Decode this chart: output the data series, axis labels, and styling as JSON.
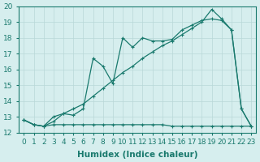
{
  "line1_x": [
    0,
    1,
    2,
    3,
    4,
    5,
    6,
    7,
    8,
    9,
    10,
    11,
    12,
    13,
    14,
    15,
    16,
    17,
    18,
    19,
    20,
    21,
    22,
    23
  ],
  "line1_y": [
    12.8,
    12.5,
    12.4,
    12.5,
    12.5,
    12.5,
    12.5,
    12.5,
    12.5,
    12.5,
    12.5,
    12.5,
    12.5,
    12.5,
    12.5,
    12.4,
    12.4,
    12.4,
    12.4,
    12.4,
    12.4,
    12.4,
    12.4,
    12.4
  ],
  "line2_x": [
    0,
    1,
    2,
    3,
    4,
    5,
    6,
    7,
    8,
    9,
    10,
    11,
    12,
    13,
    14,
    15,
    16,
    17,
    18,
    19,
    20,
    21,
    22,
    23
  ],
  "line2_y": [
    12.8,
    12.5,
    12.4,
    13.0,
    13.2,
    13.1,
    13.5,
    16.7,
    16.2,
    15.1,
    18.0,
    17.4,
    18.0,
    17.8,
    17.8,
    17.9,
    18.5,
    18.8,
    19.1,
    19.2,
    19.1,
    18.5,
    13.5,
    12.4
  ],
  "line3_x": [
    0,
    1,
    2,
    3,
    4,
    5,
    6,
    7,
    8,
    9,
    10,
    11,
    12,
    13,
    14,
    15,
    16,
    17,
    18,
    19,
    20,
    21,
    22,
    23
  ],
  "line3_y": [
    12.8,
    12.5,
    12.4,
    12.7,
    13.2,
    13.5,
    13.8,
    14.3,
    14.8,
    15.3,
    15.8,
    16.2,
    16.7,
    17.1,
    17.5,
    17.8,
    18.2,
    18.6,
    19.0,
    19.8,
    19.2,
    18.5,
    13.5,
    12.4
  ],
  "line_color": "#1a7a6e",
  "bg_color": "#d6eeee",
  "grid_color": "#b8d8d8",
  "xlabel": "Humidex (Indice chaleur)",
  "xlim": [
    -0.5,
    23.5
  ],
  "ylim": [
    12,
    20
  ],
  "yticks": [
    12,
    13,
    14,
    15,
    16,
    17,
    18,
    19,
    20
  ],
  "xticks": [
    0,
    1,
    2,
    3,
    4,
    5,
    6,
    7,
    8,
    9,
    10,
    11,
    12,
    13,
    14,
    15,
    16,
    17,
    18,
    19,
    20,
    21,
    22,
    23
  ],
  "tick_fontsize": 6.5,
  "label_fontsize": 7.5
}
